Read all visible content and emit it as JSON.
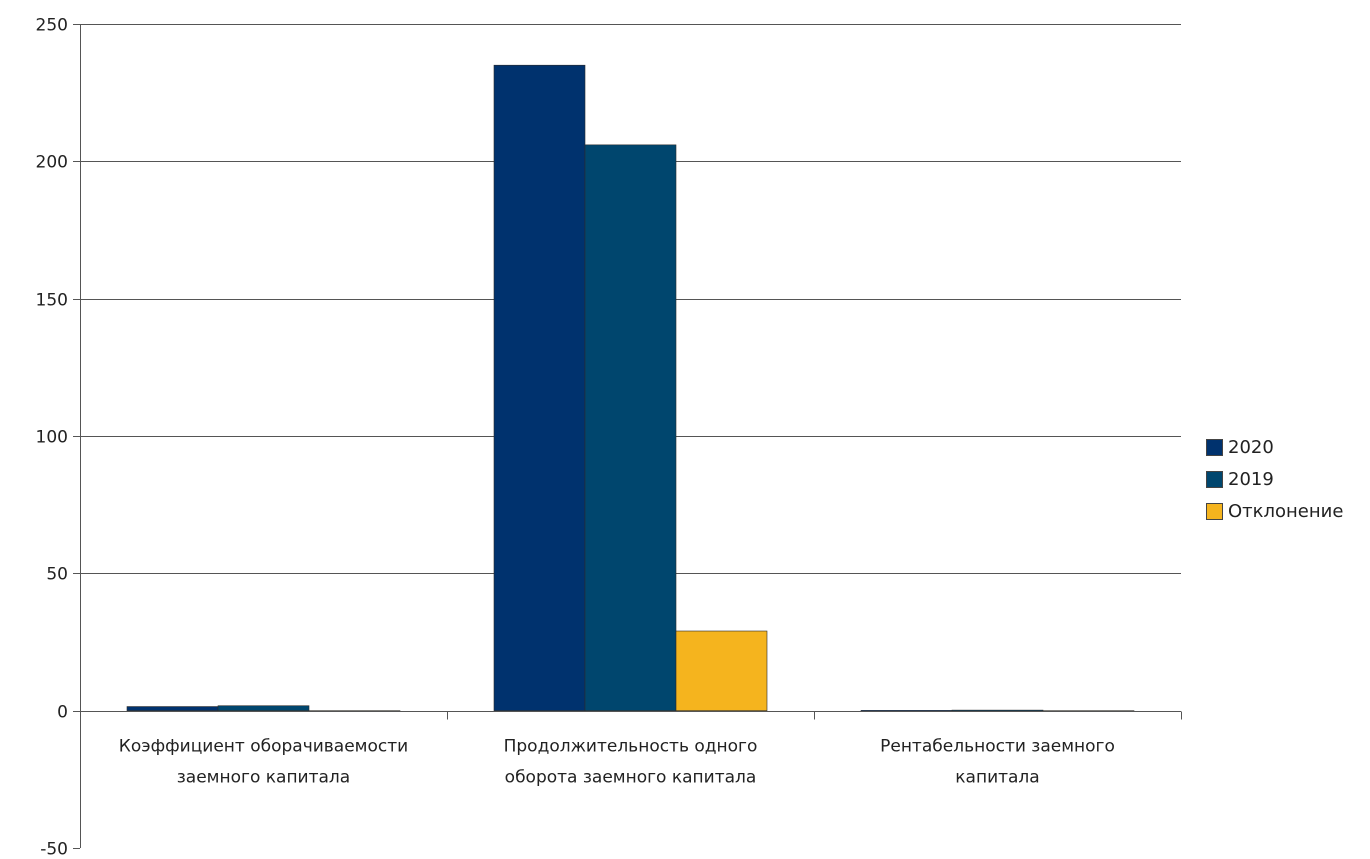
{
  "chart_data": {
    "type": "bar",
    "categories": [
      [
        "Коэффициент оборачиваемости",
        "заемного капитала"
      ],
      [
        "Продолжительность одного",
        "оборота заемного капитала"
      ],
      [
        "Рентабельности заемного",
        "капитала"
      ]
    ],
    "series": [
      {
        "name": "2020",
        "color": "#00326e",
        "values": [
          1.5,
          235,
          0.1
        ]
      },
      {
        "name": "2019",
        "color": "#00466e",
        "values": [
          1.8,
          206,
          0.2
        ]
      },
      {
        "name": "Отклонение",
        "color": "#f5b41e",
        "values": [
          -0.3,
          29,
          -0.1
        ]
      }
    ],
    "yticks": [
      "250",
      "200",
      "150",
      "100",
      "50",
      "0",
      "-50"
    ],
    "ylim": [
      -50,
      250
    ],
    "grid": true,
    "legend_position": "right"
  }
}
